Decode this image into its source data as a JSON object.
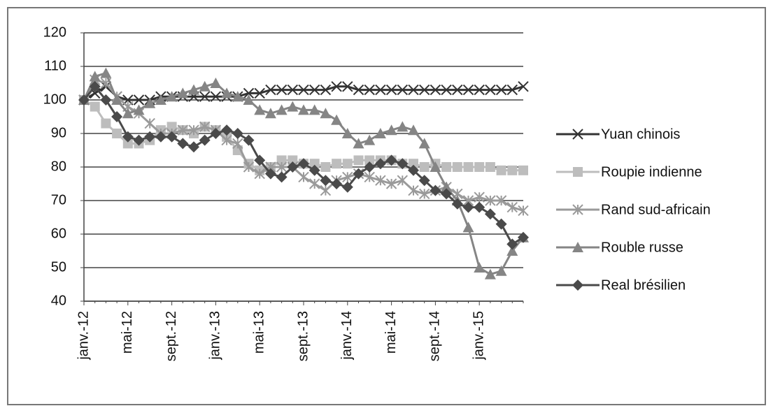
{
  "chart_data": {
    "type": "line",
    "categories": [
      "janv.-12",
      null,
      null,
      null,
      "mai-12",
      null,
      null,
      null,
      "sept.-12",
      null,
      null,
      null,
      "janv.-13",
      null,
      null,
      null,
      "mai-13",
      null,
      null,
      null,
      "sept.-13",
      null,
      null,
      null,
      "janv.-14",
      null,
      null,
      null,
      "mai-14",
      null,
      null,
      null,
      "sept.-14",
      null,
      null,
      null,
      "janv.-15",
      null,
      null,
      null,
      null
    ],
    "ylim": [
      40,
      120
    ],
    "yticks": [
      40,
      50,
      60,
      70,
      80,
      90,
      100,
      110,
      120
    ],
    "grid": true,
    "legend": "right",
    "series": [
      {
        "name": "Yuan chinois",
        "color": "#333333",
        "marker": "x",
        "values": [
          100,
          102,
          104,
          101,
          100,
          100,
          100,
          101,
          101,
          101,
          101,
          101,
          101,
          101,
          101,
          102,
          102,
          103,
          103,
          103,
          103,
          103,
          103,
          104,
          104,
          103,
          103,
          103,
          103,
          103,
          103,
          103,
          103,
          103,
          103,
          103,
          103,
          103,
          103,
          103,
          104
        ]
      },
      {
        "name": "Roupie indienne",
        "color": "#bdbdbd",
        "marker": "square",
        "values": [
          100,
          98,
          93,
          90,
          87,
          87,
          88,
          91,
          92,
          91,
          90,
          92,
          91,
          89,
          85,
          81,
          79,
          80,
          82,
          82,
          81,
          81,
          80,
          81,
          81,
          82,
          82,
          82,
          82,
          81,
          81,
          80,
          81,
          80,
          80,
          80,
          80,
          80,
          79,
          79,
          79
        ]
      },
      {
        "name": "Rand sud-africain",
        "color": "#9a9a9a",
        "marker": "star",
        "values": [
          100,
          106,
          105,
          101,
          98,
          96,
          93,
          90,
          90,
          91,
          91,
          92,
          91,
          88,
          87,
          80,
          78,
          80,
          80,
          80,
          77,
          75,
          73,
          76,
          77,
          78,
          77,
          76,
          75,
          76,
          73,
          72,
          73,
          74,
          72,
          70,
          71,
          70,
          70,
          68,
          67
        ]
      },
      {
        "name": "Rouble russe",
        "color": "#858585",
        "marker": "triangle",
        "values": [
          100,
          107,
          108,
          100,
          96,
          97,
          99,
          100,
          101,
          102,
          103,
          104,
          105,
          102,
          101,
          100,
          97,
          96,
          97,
          98,
          97,
          97,
          96,
          94,
          90,
          87,
          88,
          90,
          91,
          92,
          91,
          87,
          80,
          74,
          70,
          62,
          50,
          48,
          49,
          55,
          59
        ]
      },
      {
        "name": "Real brésilien",
        "color": "#4a4a4a",
        "marker": "diamond",
        "values": [
          100,
          104,
          100,
          95,
          89,
          88,
          89,
          89,
          89,
          87,
          86,
          88,
          90,
          91,
          90,
          88,
          82,
          78,
          77,
          80,
          81,
          79,
          76,
          75,
          74,
          78,
          80,
          81,
          82,
          81,
          79,
          76,
          73,
          72,
          69,
          68,
          68,
          66,
          63,
          57,
          59
        ]
      }
    ]
  }
}
